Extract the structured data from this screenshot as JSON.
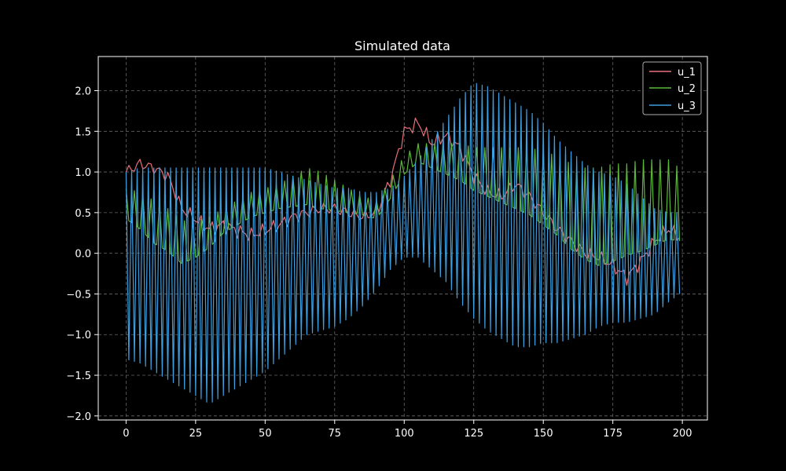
{
  "chart_data": {
    "type": "line",
    "title": "Simulated data",
    "xlabel": "",
    "ylabel": "",
    "xlim": [
      -10,
      209
    ],
    "ylim": [
      -2.05,
      2.42
    ],
    "xticks": [
      0,
      25,
      50,
      75,
      100,
      125,
      150,
      175,
      200
    ],
    "yticks": [
      -2.0,
      -1.5,
      -1.0,
      -0.5,
      0.0,
      0.5,
      1.0,
      1.5,
      2.0
    ],
    "xtick_labels": [
      "0",
      "25",
      "50",
      "75",
      "100",
      "125",
      "150",
      "175",
      "200"
    ],
    "ytick_labels": [
      "−2.0",
      "−1.5",
      "−1.0",
      "−0.5",
      "0.0",
      "0.5",
      "1.0",
      "1.5",
      "2.0"
    ],
    "grid": true,
    "legend_position": "top-right",
    "background": "#000000",
    "axes_color": "#ffffff",
    "grid_color": "#666666",
    "series": [
      {
        "name": "u_1",
        "color": "#e8707a",
        "x": [
          0,
          5,
          10,
          15,
          20,
          25,
          30,
          35,
          40,
          45,
          50,
          55,
          60,
          65,
          70,
          75,
          80,
          85,
          90,
          95,
          100,
          105,
          110,
          115,
          120,
          125,
          130,
          135,
          140,
          145,
          150,
          155,
          160,
          165,
          170,
          175,
          180,
          185,
          190,
          195,
          199
        ],
        "values": [
          1.0,
          1.1,
          1.05,
          0.95,
          0.55,
          0.42,
          0.3,
          0.35,
          0.28,
          0.22,
          0.28,
          0.35,
          0.45,
          0.5,
          0.55,
          0.55,
          0.5,
          0.45,
          0.5,
          0.9,
          1.5,
          1.6,
          1.35,
          1.45,
          1.3,
          0.95,
          0.75,
          0.7,
          0.85,
          0.7,
          0.5,
          0.3,
          0.15,
          0.0,
          -0.05,
          -0.15,
          -0.3,
          -0.1,
          0.15,
          0.3,
          0.2
        ]
      },
      {
        "name": "u_2",
        "color": "#5cb83a",
        "x": [
          0,
          5,
          10,
          15,
          20,
          25,
          30,
          35,
          40,
          45,
          50,
          55,
          60,
          65,
          70,
          75,
          80,
          85,
          90,
          95,
          100,
          105,
          110,
          115,
          120,
          125,
          130,
          135,
          140,
          145,
          150,
          155,
          160,
          165,
          170,
          175,
          180,
          185,
          190,
          195,
          199
        ],
        "values": [
          0.55,
          0.45,
          0.3,
          0.2,
          0.05,
          0.1,
          0.2,
          0.35,
          0.45,
          0.55,
          0.6,
          0.65,
          0.7,
          0.75,
          0.7,
          0.65,
          0.6,
          0.55,
          0.5,
          0.75,
          1.05,
          1.2,
          1.15,
          1.1,
          1.05,
          0.95,
          0.9,
          0.85,
          0.8,
          0.75,
          0.65,
          0.55,
          0.4,
          0.3,
          0.25,
          0.3,
          0.35,
          0.4,
          0.45,
          0.5,
          0.45
        ],
        "osc_amplitude": [
          0.25,
          0.3,
          0.35,
          0.35,
          0.35,
          0.3,
          0.25,
          0.2,
          0.2,
          0.2,
          0.2,
          0.2,
          0.25,
          0.3,
          0.3,
          0.25,
          0.2,
          0.15,
          0.15,
          0.15,
          0.15,
          0.15,
          0.2,
          0.25,
          0.3,
          0.35,
          0.4,
          0.45,
          0.5,
          0.55,
          0.6,
          0.65,
          0.7,
          0.75,
          0.8,
          0.8,
          0.75,
          0.75,
          0.7,
          0.65,
          0.6
        ],
        "osc_period": 3
      },
      {
        "name": "u_3",
        "color": "#3d9fe0",
        "x": [
          0,
          5,
          10,
          15,
          20,
          25,
          30,
          35,
          40,
          45,
          50,
          55,
          60,
          65,
          70,
          75,
          80,
          85,
          90,
          95,
          100,
          105,
          110,
          115,
          120,
          125,
          130,
          135,
          140,
          145,
          150,
          155,
          160,
          165,
          170,
          175,
          180,
          185,
          190,
          195,
          199
        ],
        "values": [
          -0.15,
          -0.15,
          -0.2,
          -0.25,
          -0.3,
          -0.35,
          -0.4,
          -0.35,
          -0.3,
          -0.25,
          -0.2,
          -0.15,
          -0.1,
          -0.05,
          -0.05,
          -0.05,
          0.0,
          0.05,
          0.15,
          0.3,
          0.45,
          0.55,
          0.6,
          0.65,
          0.65,
          0.65,
          0.55,
          0.45,
          0.35,
          0.3,
          0.25,
          0.15,
          0.1,
          0.05,
          0.05,
          0.05,
          0.0,
          -0.05,
          -0.1,
          -0.05,
          0.0
        ],
        "osc_amplitude": [
          1.15,
          1.2,
          1.25,
          1.3,
          1.35,
          1.4,
          1.45,
          1.4,
          1.35,
          1.3,
          1.25,
          1.15,
          1.05,
          0.95,
          0.9,
          0.85,
          0.8,
          0.7,
          0.6,
          0.5,
          0.5,
          0.6,
          0.8,
          1.0,
          1.25,
          1.45,
          1.5,
          1.5,
          1.5,
          1.45,
          1.35,
          1.25,
          1.15,
          1.05,
          0.95,
          0.9,
          0.85,
          0.75,
          0.65,
          0.55,
          0.5
        ],
        "osc_period": 2
      }
    ]
  }
}
